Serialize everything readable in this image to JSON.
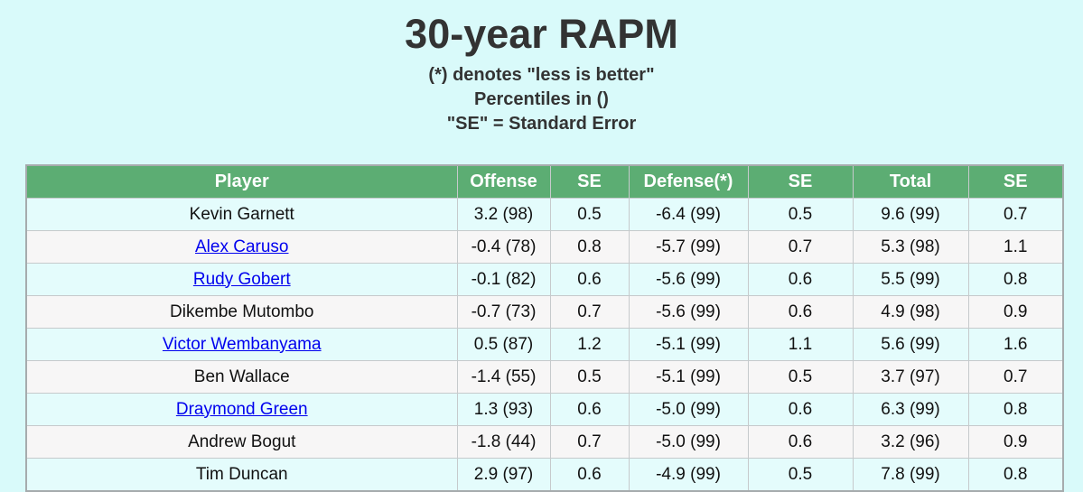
{
  "header": {
    "title": "30-year RAPM",
    "subtitle_1": "(*) denotes \"less is better\"",
    "subtitle_2": "Percentiles in ()",
    "subtitle_3": "\"SE\" = Standard Error"
  },
  "table": {
    "columns": [
      {
        "id": "player",
        "label": "Player"
      },
      {
        "id": "offense",
        "label": "Offense"
      },
      {
        "id": "offense-se",
        "label": "SE"
      },
      {
        "id": "defense",
        "label": "Defense(*)"
      },
      {
        "id": "defense-se",
        "label": "SE"
      },
      {
        "id": "total",
        "label": "Total"
      },
      {
        "id": "total-se",
        "label": "SE"
      }
    ],
    "rows": [
      {
        "player": "Kevin Garnett",
        "is_link": false,
        "offense": "3.2 (98)",
        "offense_se": "0.5",
        "defense": "-6.4 (99)",
        "defense_se": "0.5",
        "total": "9.6 (99)",
        "total_se": "0.7"
      },
      {
        "player": "Alex Caruso",
        "is_link": true,
        "offense": "-0.4 (78)",
        "offense_se": "0.8",
        "defense": "-5.7 (99)",
        "defense_se": "0.7",
        "total": "5.3 (98)",
        "total_se": "1.1"
      },
      {
        "player": "Rudy Gobert",
        "is_link": true,
        "offense": "-0.1 (82)",
        "offense_se": "0.6",
        "defense": "-5.6 (99)",
        "defense_se": "0.6",
        "total": "5.5 (99)",
        "total_se": "0.8"
      },
      {
        "player": "Dikembe Mutombo",
        "is_link": false,
        "offense": "-0.7 (73)",
        "offense_se": "0.7",
        "defense": "-5.6 (99)",
        "defense_se": "0.6",
        "total": "4.9 (98)",
        "total_se": "0.9"
      },
      {
        "player": "Victor Wembanyama",
        "is_link": true,
        "offense": "0.5 (87)",
        "offense_se": "1.2",
        "defense": "-5.1 (99)",
        "defense_se": "1.1",
        "total": "5.6 (99)",
        "total_se": "1.6"
      },
      {
        "player": "Ben Wallace",
        "is_link": false,
        "offense": "-1.4 (55)",
        "offense_se": "0.5",
        "defense": "-5.1 (99)",
        "defense_se": "0.5",
        "total": "3.7 (97)",
        "total_se": "0.7"
      },
      {
        "player": "Draymond Green",
        "is_link": true,
        "offense": "1.3 (93)",
        "offense_se": "0.6",
        "defense": "-5.0 (99)",
        "defense_se": "0.6",
        "total": "6.3 (99)",
        "total_se": "0.8"
      },
      {
        "player": "Andrew Bogut",
        "is_link": false,
        "offense": "-1.8 (44)",
        "offense_se": "0.7",
        "defense": "-5.0 (99)",
        "defense_se": "0.6",
        "total": "3.2 (96)",
        "total_se": "0.9"
      },
      {
        "player": "Tim Duncan",
        "is_link": false,
        "offense": "2.9 (97)",
        "offense_se": "0.6",
        "defense": "-4.9 (99)",
        "defense_se": "0.5",
        "total": "7.8 (99)",
        "total_se": "0.8"
      }
    ]
  },
  "colors": {
    "page_background": "#d9fafa",
    "header_green": "#5cad73",
    "row_stripe_cyan": "#e4fcfc",
    "row_stripe_gray": "#f7f6f6",
    "link_blue": "#0000EE"
  }
}
